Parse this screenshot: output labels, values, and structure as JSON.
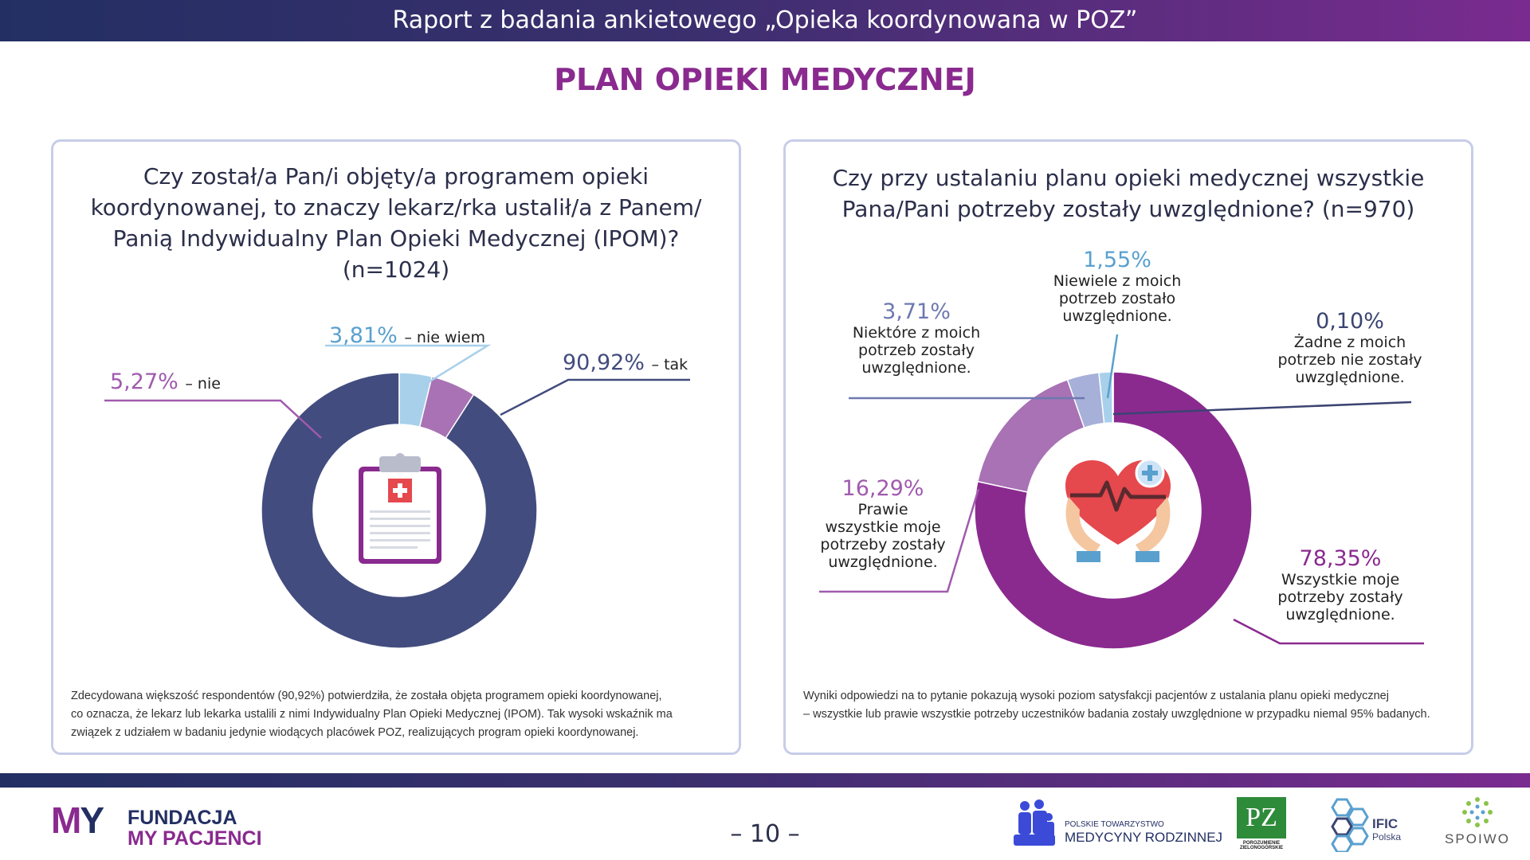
{
  "header": {
    "title": "Raport z badania ankietowego  „Opieka koordynowana w POZ”"
  },
  "page_title": "PLAN OPIEKI MEDYCZNEJ",
  "left_panel": {
    "question_lines": [
      "Czy został/a Pan/i objęty/a programem opieki",
      "koordynowanej, to znaczy lekarz/rka ustalił/a z Panem/",
      "Panią Indywidualny Plan Opieki Medycznej (IPOM)?",
      "(n=1024)"
    ],
    "description_lines": [
      "Zdecydowana większość respondentów (90,92%) potwierdziła, że została objęta programem opieki koordynowanej,",
      "co oznacza, że lekarz lub lekarka ustalili z nimi Indywidualny Plan Opieki Medycznej (IPOM). Tak wysoki wskaźnik ma",
      "związek z udziałem w badaniu jedynie  wiodących placówek POZ, realizujących program opieki koordynowanej."
    ],
    "icon": "clipboard-medical-icon"
  },
  "right_panel": {
    "question_lines": [
      "Czy przy ustalaniu planu opieki medycznej wszystkie",
      "Pana/Pani potrzeby zostały uwzględnione? (n=970)"
    ],
    "description_lines": [
      "Wyniki odpowiedzi na to pytanie pokazują wysoki poziom satysfakcji pacjentów z ustalania planu opieki medycznej",
      "– wszystkie lub prawie wszystkie potrzeby uczestników badania zostały uwzględnione w przypadku niemal 95% badanych."
    ],
    "icon": "heart-hands-icon"
  },
  "chart_data": [
    {
      "type": "pie",
      "variant": "donut",
      "categories": [
        "tak",
        "nie",
        "nie wiem"
      ],
      "values": [
        90.92,
        5.27,
        3.81
      ],
      "value_labels": [
        "90,92%",
        "5,27%",
        "3,81%"
      ],
      "label_texts": [
        "– tak",
        "– nie",
        "– nie wiem"
      ],
      "colors": [
        "#424c7e",
        "#a872b4",
        "#a8d0ea"
      ],
      "label_colors": [
        "#424c7e",
        "#a05aae",
        "#5aa0cf"
      ]
    },
    {
      "type": "pie",
      "variant": "donut",
      "categories": [
        "Wszystkie moje potrzeby zostały uwzględnione.",
        "Prawie wszystkie moje potrzeby zostały uwzględnione.",
        "Niektóre z moich potrzeb zostały uwzględnione.",
        "Niewiele z moich potrzeb zostało uwzględnione.",
        "Żadne z moich potrzeb nie zostały uwzględnione."
      ],
      "values": [
        78.35,
        16.29,
        3.71,
        1.55,
        0.1
      ],
      "value_labels": [
        "78,35%",
        "16,29%",
        "3,71%",
        "1,55%",
        "0,10%"
      ],
      "label_lines": [
        [
          "Wszystkie moje",
          "potrzeby zostały",
          "uwzględnione."
        ],
        [
          "Prawie",
          "wszystkie moje",
          "potrzeby zostały",
          "uwzględnione."
        ],
        [
          "Niektóre z moich",
          "potrzeb zostały",
          "uwzględnione."
        ],
        [
          "Niewiele z moich",
          "potrzeb zostało",
          "uwzględnione."
        ],
        [
          "Żadne z moich",
          "potrzeb nie zostały",
          "uwzględnione."
        ]
      ],
      "colors": [
        "#8a2a8f",
        "#a872b4",
        "#a7b0d8",
        "#a8d0ea",
        "#3b4472"
      ],
      "label_colors": [
        "#8a2a8f",
        "#a05aae",
        "#6d78b0",
        "#5aa0cf",
        "#3b4472"
      ]
    }
  ],
  "footer": {
    "page_number": "– 10 –",
    "logos": {
      "fundacja_line1": "FUNDACJA",
      "fundacja_line2": "MY PACJENCI",
      "fundacja_mark": "MY",
      "ptmr_line1": "POLSKIE TOWARZYSTWO",
      "ptmr_line2": "MEDYCYNY RODZINNEJ",
      "pz_mark": "PZ",
      "pz_text": "POROZUMIENIE ZIELONOGÓRSKIE",
      "ific_line1": "IFIC",
      "ific_line2": "Polska",
      "spoiwo": "SPOIWO"
    },
    "colors": {
      "purple": "#8a2a8f",
      "navy": "#232f63",
      "green": "#2e8b3a"
    }
  }
}
